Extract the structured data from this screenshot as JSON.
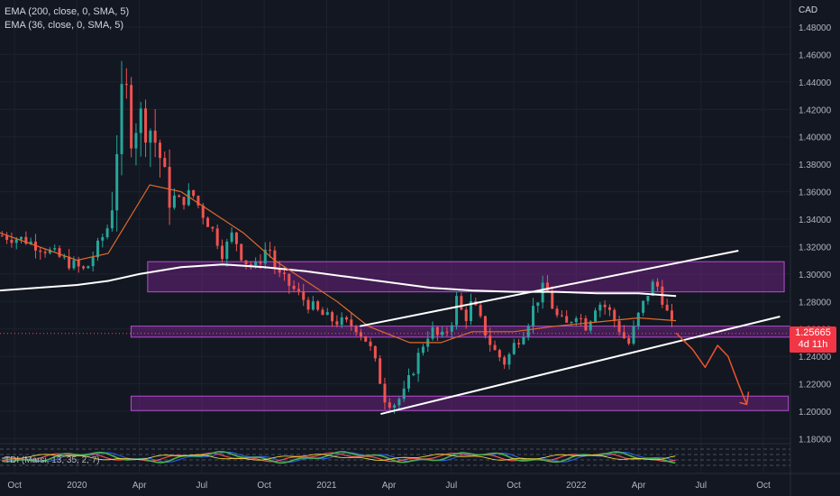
{
  "legend": {
    "ema200": "EMA (200, close, 0, SMA, 5)",
    "ema36": "EMA (36, close, 0, SMA, 5)"
  },
  "indicator": {
    "label": "TDI (Marsi, 13, 35, 2, 7)"
  },
  "currency": "CAD",
  "last_price": {
    "value": "1.25665",
    "countdown": "4d 11h"
  },
  "colors": {
    "background": "#131722",
    "up": "#26a69a",
    "down": "#ef5350",
    "ema200": "#ffffff",
    "ema36": "#e06a2a",
    "zone": "#9c27b0",
    "projection": "#f0542b"
  },
  "chart_data": {
    "type": "candlestick",
    "x_ticks": [
      "Oct",
      "2020",
      "Apr",
      "Jul",
      "Oct",
      "2021",
      "Apr",
      "Jul",
      "Oct",
      "2022",
      "Apr",
      "Jul",
      "Oct"
    ],
    "y_ticks": [
      "1.48000",
      "1.46000",
      "1.44000",
      "1.42000",
      "1.40000",
      "1.38000",
      "1.36000",
      "1.34000",
      "1.32000",
      "1.30000",
      "1.28000",
      "1.26000",
      "1.24000",
      "1.22000",
      "1.20000",
      "1.18000"
    ],
    "ylim": [
      1.17,
      1.49
    ],
    "xlim_month_index": [
      -3.7,
      34.3
    ],
    "x_ref": "month index 0 = Jan 2020",
    "candle_close_anchors": [
      [
        -3.6,
        1.328
      ],
      [
        -2.5,
        1.325
      ],
      [
        -1.5,
        1.318
      ],
      [
        -0.6,
        1.31
      ],
      [
        0.4,
        1.302
      ],
      [
        1.0,
        1.32
      ],
      [
        1.5,
        1.335
      ],
      [
        1.75,
        1.36
      ],
      [
        2.0,
        1.41
      ],
      [
        2.3,
        1.44
      ],
      [
        2.6,
        1.405
      ],
      [
        3.0,
        1.415
      ],
      [
        3.6,
        1.405
      ],
      [
        4.0,
        1.385
      ],
      [
        4.3,
        1.36
      ],
      [
        5.0,
        1.352
      ],
      [
        5.5,
        1.36
      ],
      [
        6.0,
        1.345
      ],
      [
        6.6,
        1.33
      ],
      [
        7.0,
        1.315
      ],
      [
        7.5,
        1.33
      ],
      [
        8.0,
        1.31
      ],
      [
        8.6,
        1.305
      ],
      [
        9.2,
        1.322
      ],
      [
        9.6,
        1.3
      ],
      [
        10.0,
        1.295
      ],
      [
        11.0,
        1.28
      ],
      [
        11.6,
        1.272
      ],
      [
        12.0,
        1.268
      ],
      [
        12.6,
        1.265
      ],
      [
        13.4,
        1.262
      ],
      [
        14.0,
        1.25
      ],
      [
        14.4,
        1.232
      ],
      [
        14.8,
        1.21
      ],
      [
        15.2,
        1.205
      ],
      [
        15.7,
        1.212
      ],
      [
        16.2,
        1.232
      ],
      [
        16.6,
        1.248
      ],
      [
        17.0,
        1.26
      ],
      [
        17.5,
        1.252
      ],
      [
        18.0,
        1.265
      ],
      [
        18.3,
        1.285
      ],
      [
        18.6,
        1.265
      ],
      [
        19.0,
        1.28
      ],
      [
        19.5,
        1.262
      ],
      [
        20.0,
        1.245
      ],
      [
        20.6,
        1.235
      ],
      [
        21.0,
        1.248
      ],
      [
        21.6,
        1.262
      ],
      [
        22.0,
        1.278
      ],
      [
        22.5,
        1.292
      ],
      [
        23.0,
        1.27
      ],
      [
        23.5,
        1.262
      ],
      [
        24.0,
        1.272
      ],
      [
        24.5,
        1.262
      ],
      [
        25.0,
        1.28
      ],
      [
        25.5,
        1.275
      ],
      [
        26.0,
        1.262
      ],
      [
        26.5,
        1.248
      ],
      [
        27.0,
        1.27
      ],
      [
        27.5,
        1.288
      ],
      [
        27.8,
        1.295
      ],
      [
        28.2,
        1.28
      ],
      [
        28.5,
        1.265
      ],
      [
        28.8,
        1.257
      ]
    ],
    "series": [
      {
        "name": "EMA (200, close, 0, SMA, 5)",
        "points": [
          [
            -3.7,
            1.288
          ],
          [
            0.0,
            1.292
          ],
          [
            1.5,
            1.295
          ],
          [
            3.0,
            1.3
          ],
          [
            5.0,
            1.305
          ],
          [
            7.0,
            1.307
          ],
          [
            9.0,
            1.305
          ],
          [
            11.0,
            1.302
          ],
          [
            13.0,
            1.298
          ],
          [
            15.0,
            1.294
          ],
          [
            17.0,
            1.29
          ],
          [
            19.0,
            1.288
          ],
          [
            21.0,
            1.287
          ],
          [
            23.0,
            1.287
          ],
          [
            25.0,
            1.286
          ],
          [
            27.0,
            1.286
          ],
          [
            28.8,
            1.284
          ]
        ]
      },
      {
        "name": "EMA (36, close, 0, SMA, 5)",
        "points": [
          [
            -3.7,
            1.33
          ],
          [
            0.0,
            1.31
          ],
          [
            1.5,
            1.315
          ],
          [
            2.5,
            1.34
          ],
          [
            3.5,
            1.365
          ],
          [
            5.0,
            1.36
          ],
          [
            6.5,
            1.345
          ],
          [
            8.0,
            1.33
          ],
          [
            9.5,
            1.31
          ],
          [
            11.0,
            1.295
          ],
          [
            12.5,
            1.28
          ],
          [
            14.0,
            1.262
          ],
          [
            16.0,
            1.25
          ],
          [
            17.5,
            1.25
          ],
          [
            19.0,
            1.258
          ],
          [
            21.0,
            1.258
          ],
          [
            23.0,
            1.262
          ],
          [
            25.0,
            1.265
          ],
          [
            27.0,
            1.268
          ],
          [
            28.8,
            1.266
          ]
        ]
      }
    ],
    "zones": [
      {
        "x0": 3.4,
        "x1": 34.0,
        "y0": 1.287,
        "y1": 1.309
      },
      {
        "x0": 2.6,
        "x1": 34.3,
        "y0": 1.254,
        "y1": 1.262
      },
      {
        "x0": 2.6,
        "x1": 34.2,
        "y0": 1.2005,
        "y1": 1.211
      }
    ],
    "trendlines": [
      {
        "points": [
          [
            14.6,
            1.198
          ],
          [
            33.8,
            1.269
          ]
        ]
      },
      {
        "points": [
          [
            13.6,
            1.262
          ],
          [
            31.8,
            1.317
          ]
        ]
      }
    ],
    "projection": [
      [
        28.8,
        1.257
      ],
      [
        29.6,
        1.245
      ],
      [
        30.2,
        1.232
      ],
      [
        30.8,
        1.248
      ],
      [
        31.3,
        1.24
      ],
      [
        31.8,
        1.22
      ],
      [
        32.2,
        1.205
      ]
    ]
  }
}
